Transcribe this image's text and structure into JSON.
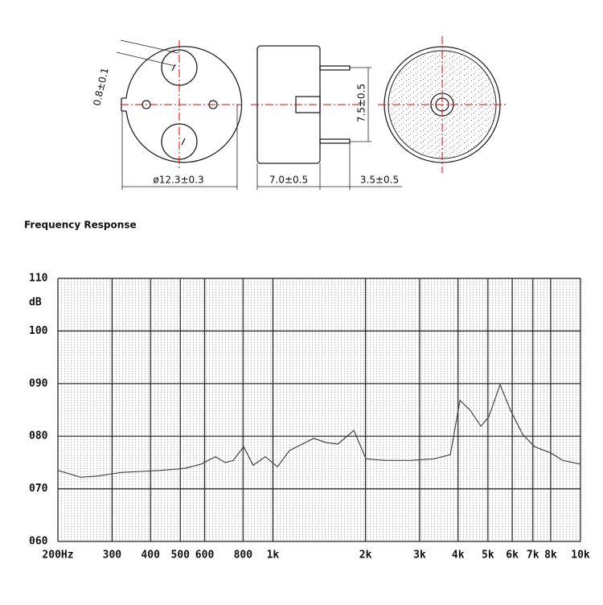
{
  "drawing": {
    "pin_diameter": "0.8±0.1",
    "outer_diameter": "ø12.3±0.3",
    "body_height": "7.0±0.5",
    "pin_spacing": "7.5±0.5",
    "pin_length": "3.5±0.5"
  },
  "chart_data": {
    "type": "line",
    "title": "Frequency Response",
    "y_label": "dB",
    "log_x": true,
    "grid": true,
    "color": "#444",
    "x": [
      200,
      237,
      267,
      320,
      432,
      518,
      584,
      650,
      700,
      743,
      803,
      863,
      945,
      1035,
      1133,
      1358,
      1486,
      1626,
      1834,
      2006,
      2332,
      2793,
      3344,
      3774,
      4057,
      4385,
      4744,
      5035,
      5478,
      5925,
      6490,
      7101,
      8015,
      8771,
      10000
    ],
    "values": [
      73.5,
      72.2,
      72.4,
      73.1,
      73.5,
      73.9,
      74.7,
      76.1,
      75,
      75.4,
      78,
      74.5,
      76.1,
      74.2,
      77.3,
      79.6,
      78.8,
      78.5,
      81.1,
      75.7,
      75.4,
      75.4,
      75.7,
      76.5,
      86.8,
      84.9,
      81.9,
      83.7,
      89.8,
      84.9,
      80.3,
      78,
      76.8,
      75.4,
      74.7
    ],
    "xlim": [
      200,
      10000
    ],
    "xticks": [
      {
        "value": 200,
        "label": "200Hz"
      },
      300,
      400,
      500,
      600,
      800,
      {
        "value": 1000,
        "label": "1k"
      },
      {
        "value": 2000,
        "label": "2k"
      },
      {
        "value": 3000,
        "label": "3k"
      },
      {
        "value": 4000,
        "label": "4k"
      },
      {
        "value": 5000,
        "label": "5k"
      },
      {
        "value": 6000,
        "label": "6k"
      },
      {
        "value": 7000,
        "label": "7k"
      },
      {
        "value": 8000,
        "label": "8k"
      },
      {
        "value": 10000,
        "label": "10k"
      }
    ],
    "ylim": [
      60,
      110
    ],
    "yticks": [
      {
        "value": 60,
        "label": "060"
      },
      {
        "value": 70,
        "label": "070"
      },
      {
        "value": 80,
        "label": "080"
      },
      {
        "value": 90,
        "label": "090"
      },
      100,
      110
    ]
  }
}
